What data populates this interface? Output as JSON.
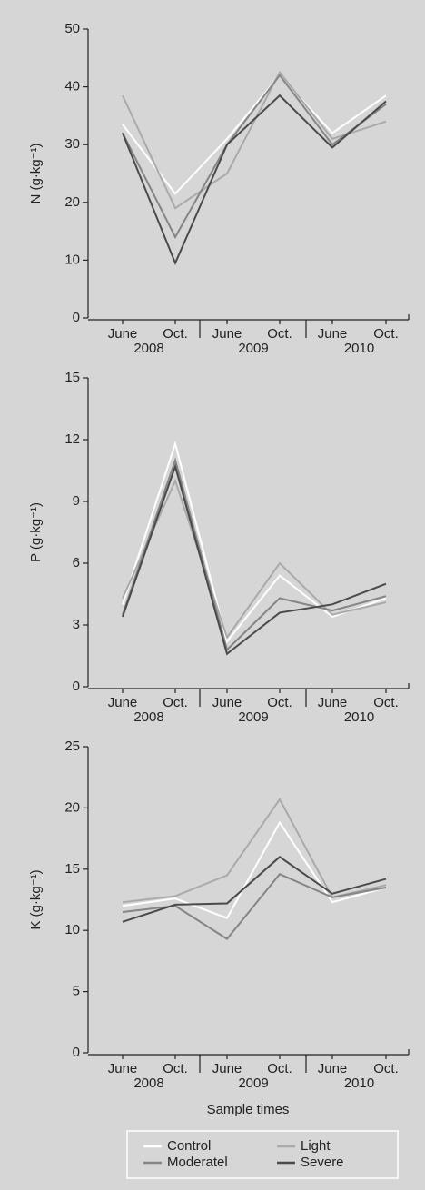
{
  "chart_data": [
    {
      "type": "line",
      "y_label": "N (g·kg⁻¹)",
      "categories": [
        "June",
        "Oct.",
        "June",
        "Oct.",
        "June",
        "Oct."
      ],
      "groups": [
        "2008",
        "2009",
        "2010"
      ],
      "ylim": [
        0,
        50
      ],
      "yticks": [
        0,
        10,
        20,
        30,
        40,
        50
      ],
      "series": [
        {
          "name": "Control",
          "color": "#ffffff",
          "values": [
            33.5,
            21.5,
            31,
            42,
            32,
            38.5
          ]
        },
        {
          "name": "Light",
          "color": "#aaaaaa",
          "values": [
            38.5,
            19,
            25,
            42.5,
            31,
            34
          ]
        },
        {
          "name": "Moderatel",
          "color": "#858585",
          "values": [
            32,
            14,
            30,
            42,
            30,
            37
          ]
        },
        {
          "name": "Severe",
          "color": "#4a4a4a",
          "values": [
            32,
            9.5,
            30,
            38.5,
            29.5,
            37.5
          ]
        }
      ]
    },
    {
      "type": "line",
      "y_label": "P (g·kg⁻¹)",
      "categories": [
        "June",
        "Oct.",
        "June",
        "Oct.",
        "June",
        "Oct."
      ],
      "groups": [
        "2008",
        "2009",
        "2010"
      ],
      "ylim": [
        0,
        15
      ],
      "yticks": [
        0,
        3,
        6,
        9,
        12,
        15
      ],
      "series": [
        {
          "name": "Control",
          "color": "#ffffff",
          "values": [
            4,
            11.8,
            2.2,
            5.4,
            3.4,
            4.3
          ]
        },
        {
          "name": "Light",
          "color": "#aaaaaa",
          "values": [
            4.3,
            10,
            2.4,
            6,
            3.5,
            4.1
          ]
        },
        {
          "name": "Moderatel",
          "color": "#858585",
          "values": [
            3.5,
            11,
            1.8,
            4.3,
            3.7,
            4.4
          ]
        },
        {
          "name": "Severe",
          "color": "#4a4a4a",
          "values": [
            3.4,
            10.7,
            1.6,
            3.6,
            4,
            5
          ]
        }
      ]
    },
    {
      "type": "line",
      "y_label": "K (g·kg⁻¹)",
      "x_label": "Sample times",
      "categories": [
        "June",
        "Oct.",
        "June",
        "Oct.",
        "June",
        "Oct."
      ],
      "groups": [
        "2008",
        "2009",
        "2010"
      ],
      "ylim": [
        0,
        25
      ],
      "yticks": [
        0,
        5,
        10,
        15,
        20,
        25
      ],
      "series": [
        {
          "name": "Control",
          "color": "#ffffff",
          "values": [
            12,
            12.6,
            11,
            18.8,
            12.3,
            13.5
          ]
        },
        {
          "name": "Light",
          "color": "#aaaaaa",
          "values": [
            12.3,
            12.8,
            14.5,
            20.7,
            12.7,
            13.7
          ]
        },
        {
          "name": "Moderatel",
          "color": "#858585",
          "values": [
            11.5,
            12,
            9.3,
            14.6,
            12.7,
            13.5
          ]
        },
        {
          "name": "Severe",
          "color": "#4a4a4a",
          "values": [
            10.7,
            12.1,
            12.2,
            16,
            13,
            14.2
          ]
        }
      ]
    }
  ]
}
